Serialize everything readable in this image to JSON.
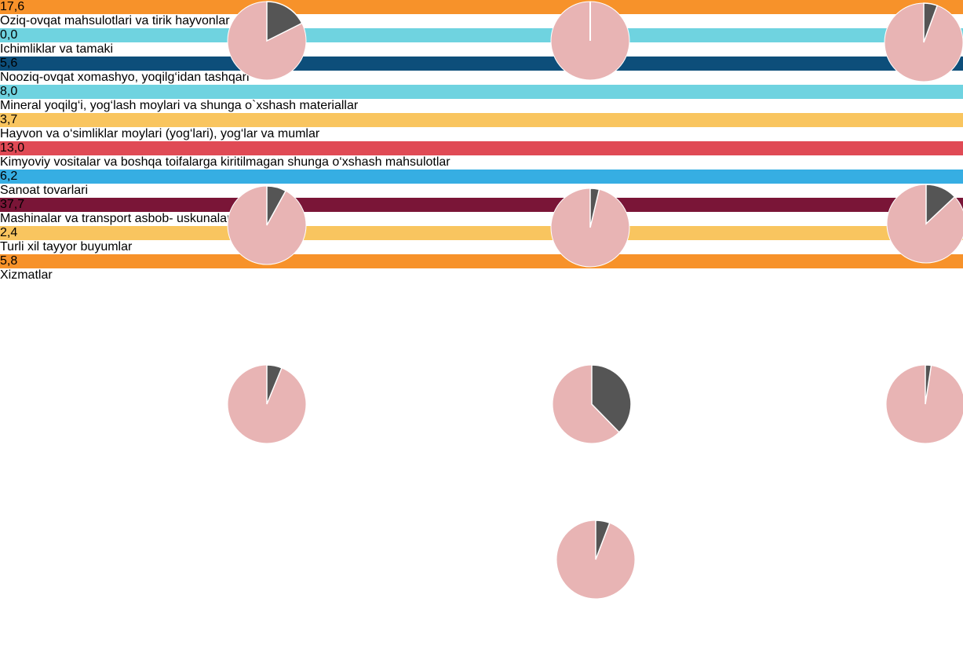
{
  "chart_data": {
    "type": "pie",
    "categories": [
      "Oziq-ovqat\nmahsulotlari va\ntirik hayvonlar",
      "Ichimliklar va\ntamaki",
      "Nooziq-ovqat\nxomashyo,\nyoqilg‘idan\ntashqari",
      "Mineral yoqilg‘i,\nyog‘lash moylari va\nshunga o`xshash\nmateriallar",
      "Hayvon va\no‘simliklar moylari\n(yog‘lari), yog‘lar\nva mumlar",
      "Kimyoviy vositalar\nva boshqa toifalarga\nkiritilmagan shunga\no‘xshash mahsulotlar",
      "Sanoat tovarlari",
      "Mashinalar va\ntransport asbob-\nuskunalari",
      "Turli xil tayyor\nbuyumlar",
      "Xizmatlar"
    ],
    "values": [
      17.6,
      0.0,
      5.6,
      8.0,
      3.7,
      13.0,
      6.2,
      37.7,
      2.4,
      5.8
    ],
    "value_labels": [
      "17,6",
      "0,0",
      "5,6",
      "8,0",
      "3,7",
      "13,0",
      "6,2",
      "37,7",
      "2,4",
      "5,8"
    ],
    "colors": [
      "#f7922a",
      "#6fd3e0",
      "#0d4e7a",
      "#6fd3e0",
      "#f9c55f",
      "#e04a55",
      "#36aee3",
      "#7a1537",
      "#f9c55f",
      "#f7922a"
    ],
    "line_colors": [
      "#e8781c",
      "#0d3f63",
      "#0d3f63",
      "#0d3f63",
      "#e0a83a",
      "#c4303c",
      "#2a8fc5",
      "#6b0f2e",
      "#e0a83a",
      "#e8781c"
    ],
    "pie_color": "#e8b4b4",
    "slice_color": "#555555"
  }
}
